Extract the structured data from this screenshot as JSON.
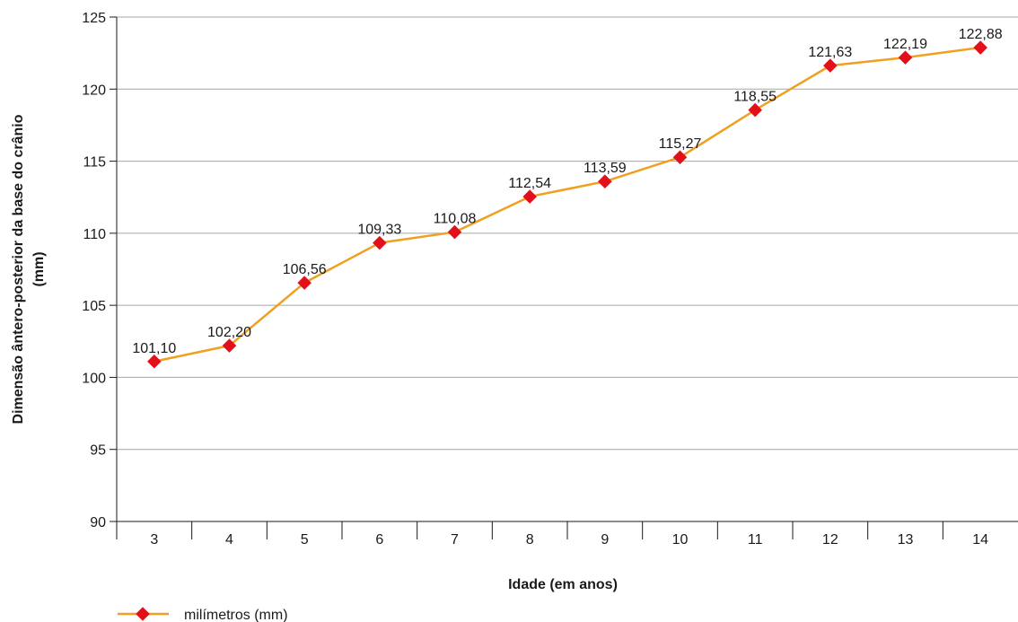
{
  "chart_data": {
    "type": "line",
    "categories": [
      "3",
      "4",
      "5",
      "6",
      "7",
      "8",
      "9",
      "10",
      "11",
      "12",
      "13",
      "14"
    ],
    "series": [
      {
        "name": "milímetros (mm)",
        "values": [
          101.1,
          102.2,
          106.56,
          109.33,
          110.08,
          112.54,
          113.59,
          115.27,
          118.55,
          121.63,
          122.19,
          122.88
        ],
        "labels": [
          "101,10",
          "102,20",
          "106,56",
          "109,33",
          "110,08",
          "112,54",
          "113,59",
          "115,27",
          "118,55",
          "121,63",
          "122,19",
          "122,88"
        ]
      }
    ],
    "xlabel": "Idade (em anos)",
    "ylabel_line1": "Dimensão ântero-posterior da base do crânio",
    "ylabel_line2": "(mm)",
    "ylim": [
      90,
      125
    ],
    "yticks": [
      90,
      95,
      100,
      105,
      110,
      115,
      120,
      125
    ],
    "grid": true,
    "legend_position": "bottom-left",
    "colors": {
      "line": "#f0a020",
      "marker": "#e3101a",
      "grid": "#a6a6a6",
      "axis": "#1a1a1a"
    }
  }
}
